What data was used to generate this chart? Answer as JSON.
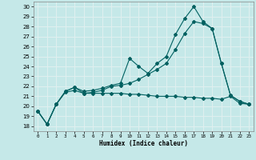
{
  "xlabel": "Humidex (Indice chaleur)",
  "bg_color": "#c5e8e8",
  "grid_color": "#e0f0f0",
  "line_color": "#006060",
  "xlim": [
    -0.5,
    23.5
  ],
  "ylim": [
    17.5,
    30.5
  ],
  "xticks": [
    0,
    1,
    2,
    3,
    4,
    5,
    6,
    7,
    8,
    9,
    10,
    11,
    12,
    13,
    14,
    15,
    16,
    17,
    18,
    19,
    20,
    21,
    22,
    23
  ],
  "yticks": [
    18,
    19,
    20,
    21,
    22,
    23,
    24,
    25,
    26,
    27,
    28,
    29,
    30
  ],
  "line1_x": [
    0,
    1,
    2,
    3,
    4,
    5,
    6,
    7,
    8,
    9,
    10,
    11,
    12,
    13,
    14,
    15,
    16,
    17,
    18,
    19,
    20,
    21,
    22,
    23
  ],
  "line1_y": [
    19.5,
    18.2,
    20.2,
    21.5,
    21.9,
    21.5,
    21.6,
    21.8,
    22.1,
    22.3,
    24.8,
    24.0,
    23.3,
    24.3,
    25.0,
    27.2,
    28.8,
    30.0,
    28.5,
    27.8,
    24.3,
    21.1,
    20.5,
    20.2
  ],
  "line2_x": [
    0,
    1,
    2,
    3,
    4,
    5,
    6,
    7,
    8,
    9,
    10,
    11,
    12,
    13,
    14,
    15,
    16,
    17,
    18,
    19,
    20,
    21,
    22,
    23
  ],
  "line2_y": [
    19.5,
    18.2,
    20.2,
    21.5,
    21.9,
    21.3,
    21.4,
    21.6,
    22.0,
    22.1,
    22.3,
    22.7,
    23.2,
    23.7,
    24.3,
    25.7,
    27.3,
    28.5,
    28.3,
    27.8,
    24.3,
    21.1,
    20.5,
    20.2
  ],
  "line3_x": [
    0,
    1,
    2,
    3,
    4,
    5,
    6,
    7,
    8,
    9,
    10,
    11,
    12,
    13,
    14,
    15,
    16,
    17,
    18,
    19,
    20,
    21,
    22,
    23
  ],
  "line3_y": [
    19.5,
    18.2,
    20.2,
    21.4,
    21.6,
    21.3,
    21.3,
    21.3,
    21.3,
    21.3,
    21.2,
    21.2,
    21.1,
    21.0,
    21.0,
    21.0,
    20.9,
    20.9,
    20.8,
    20.8,
    20.7,
    21.0,
    20.3,
    20.2
  ]
}
